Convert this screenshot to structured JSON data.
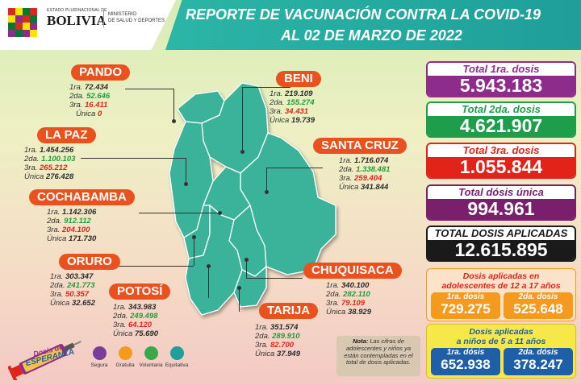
{
  "header": {
    "gov_small": "ESTADO PLURINACIONAL DE",
    "gov_name": "BOLIVIA",
    "ministry_line1": "MINISTERIO",
    "ministry_line2": "DE SALUD Y DEPORTES",
    "title_line1": "REPORTE DE VACUNACIÓN CONTRA LA COVID-19",
    "title_line2": "AL 02 DE MARZO DE 2022"
  },
  "departments": {
    "pando": {
      "name": "PANDO",
      "l1": "1ra.",
      "v1": "72.434",
      "l2": "2da.",
      "v2": "52.646",
      "l3": "3ra.",
      "v3": "16.411",
      "lu": "Única",
      "vu": "0"
    },
    "beni": {
      "name": "BENI",
      "l1": "1ra.",
      "v1": "219.109",
      "l2": "2da.",
      "v2": "155.274",
      "l3": "3ra.",
      "v3": "34.431",
      "lu": "Única",
      "vu": "19.739"
    },
    "lapaz": {
      "name": "LA PAZ",
      "l1": "1ra.",
      "v1": "1.454.256",
      "l2": "2da.",
      "v2": "1.100.103",
      "l3": "3ra.",
      "v3": "265.212",
      "lu": "Única",
      "vu": "276.428"
    },
    "santacruz": {
      "name": "SANTA CRUZ",
      "l1": "1ra.",
      "v1": "1.716.074",
      "l2": "2da.",
      "v2": "1.338.481",
      "l3": "3ra.",
      "v3": "259.404",
      "lu": "Única",
      "vu": "341.844"
    },
    "cochabamba": {
      "name": "COCHABAMBA",
      "l1": "1ra.",
      "v1": "1.142.306",
      "l2": "2da.",
      "v2": "912.112",
      "l3": "3ra.",
      "v3": "204.100",
      "lu": "Única",
      "vu": "171.730"
    },
    "oruro": {
      "name": "ORURO",
      "l1": "1ra.",
      "v1": "303.347",
      "l2": "2da.",
      "v2": "241.773",
      "l3": "3ra.",
      "v3": "50.357",
      "lu": "Única",
      "vu": "32.652"
    },
    "chuquisaca": {
      "name": "CHUQUISACA",
      "l1": "1ra.",
      "v1": "340.100",
      "l2": "2da.",
      "v2": "282.110",
      "l3": "3ra.",
      "v3": "79.109",
      "lu": "Única",
      "vu": "38.929"
    },
    "potosi": {
      "name": "POTOSÍ",
      "l1": "1ra.",
      "v1": "343.983",
      "l2": "2da.",
      "v2": "249.498",
      "l3": "3ra.",
      "v3": "64.120",
      "lu": "Única",
      "vu": "75.690"
    },
    "tarija": {
      "name": "TARIJA",
      "l1": "1ra.",
      "v1": "351.574",
      "l2": "2da.",
      "v2": "289.910",
      "l3": "3ra.",
      "v3": "82.700",
      "lu": "Única",
      "vu": "37.949"
    }
  },
  "totals": {
    "first": {
      "label": "Total 1ra. dosis",
      "value": "5.943.183",
      "color": "#8e2c8c"
    },
    "second": {
      "label": "Total 2da. dosis",
      "value": "4.621.907",
      "color": "#1e9e4a"
    },
    "third": {
      "label": "Total 3ra. dosis",
      "value": "1.055.844",
      "color": "#e2231a"
    },
    "unique": {
      "label": "Total dósis única",
      "value": "994.961",
      "color": "#7a1f6b"
    },
    "applied": {
      "label": "TOTAL DOSIS APLICADAS",
      "value": "12.615.895",
      "color": "#1a1a1a"
    }
  },
  "adolescents": {
    "title_line1": "Dosis aplicadas en",
    "title_line2": "adolescentes de 12 a 17 años",
    "first_label": "1ra. dosis",
    "first_value": "729.275",
    "second_label": "2da. dosis",
    "second_value": "525.648"
  },
  "children": {
    "title_line1": "Dosis aplicadas",
    "title_line2": "a niños de 5 a 11 años",
    "first_label": "1ra. dósis",
    "first_value": "652.938",
    "second_label": "2da. dósis",
    "second_value": "378.247"
  },
  "note": {
    "label": "Nota:",
    "text": "Las cifras de adolescentes y niños ya están contempladas en el total de dosis aplicadas."
  },
  "campaign": {
    "line1": "Dosis de",
    "line2": "ESPERANZA"
  },
  "principles": [
    {
      "label": "Segura",
      "color": "#7a3c9a"
    },
    {
      "label": "Gratuita",
      "color": "#f39a1f"
    },
    {
      "label": "Voluntaria",
      "color": "#3aa84a"
    },
    {
      "label": "Equitativa",
      "color": "#1f9e9a"
    }
  ]
}
